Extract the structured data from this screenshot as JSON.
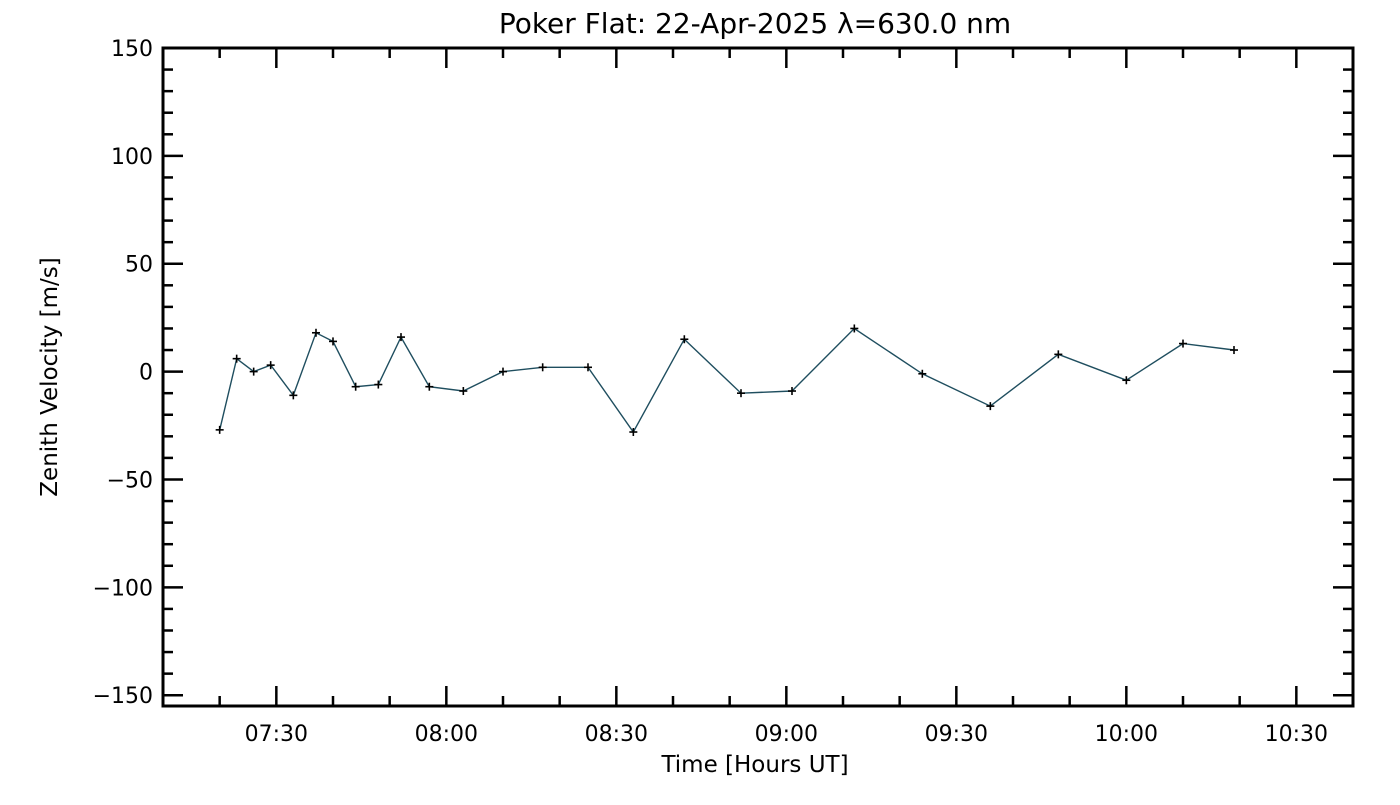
{
  "chart_data": {
    "type": "line",
    "title": "Poker Flat: 22-Apr-2025 λ=630.0 nm",
    "xlabel": "Time [Hours UT]",
    "ylabel": "Zenith Velocity [m/s]",
    "xlim": [
      "07:10",
      "10:40"
    ],
    "ylim": [
      -155,
      150
    ],
    "x_ticks": [
      "07:30",
      "08:00",
      "08:30",
      "09:00",
      "09:30",
      "10:00",
      "10:30"
    ],
    "y_ticks": [
      150,
      100,
      50,
      0,
      -50,
      -100,
      -150
    ],
    "y_tick_labels": [
      "150",
      "100",
      "50",
      "0",
      "−50",
      "−100",
      "−150"
    ],
    "grid": false,
    "line_color": "#1f4e5f",
    "marker": "plus",
    "series": [
      {
        "x": [
          "07:20",
          "07:23",
          "07:26",
          "07:29",
          "07:33",
          "07:37",
          "07:40",
          "07:44",
          "07:48",
          "07:52",
          "07:57",
          "08:03",
          "08:10",
          "08:17",
          "08:25",
          "08:33",
          "08:42",
          "08:52",
          "09:01",
          "09:12",
          "09:24",
          "09:36",
          "09:48",
          "10:00",
          "10:10",
          "10:19"
        ],
        "values": [
          -27,
          6,
          0,
          3,
          -11,
          18,
          14,
          -7,
          -6,
          16,
          -7,
          -9,
          0,
          2,
          2,
          -28,
          15,
          -10,
          -9,
          20,
          -1,
          -16,
          8,
          -4,
          13,
          10
        ]
      }
    ]
  }
}
